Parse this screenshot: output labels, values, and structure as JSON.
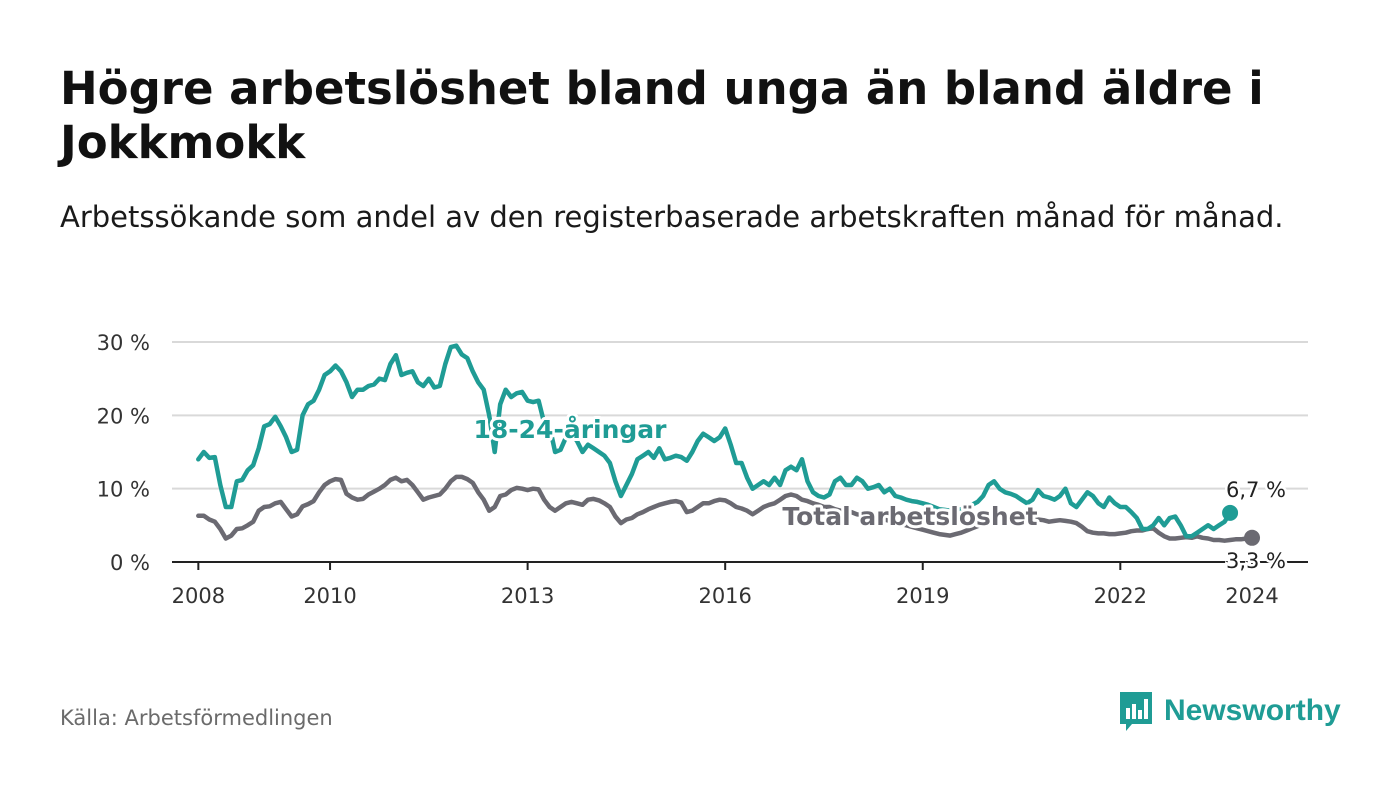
{
  "title": "Högre arbetslöshet bland unga än bland äldre i Jokkmokk",
  "subtitle": "Arbetssökande som andel av den registerbaserade arbetskraften månad för månad.",
  "source": "Källa: Arbetsförmedlingen",
  "brand": {
    "name": "Newsworthy",
    "icon": "newsworthy-logo-icon",
    "color": "#1f9c95"
  },
  "chart_data": {
    "type": "line",
    "title": "Högre arbetslöshet bland unga än bland äldre i Jokkmokk",
    "xlabel": "",
    "ylabel": "",
    "ylim": [
      0,
      30
    ],
    "xlim": [
      2007.6,
      2024.85
    ],
    "yticks": [
      0,
      10,
      20,
      30
    ],
    "ytick_labels": [
      "0 %",
      "10 %",
      "20 %",
      "30 %"
    ],
    "xticks": [
      2008,
      2010,
      2013,
      2016,
      2019,
      2022,
      2024
    ],
    "xtick_labels": [
      "2008",
      "2010",
      "2013",
      "2016",
      "2019",
      "2022",
      "2024"
    ],
    "grid": true,
    "legend": "inline labels",
    "series": [
      {
        "name": "18-24-åringar",
        "color": "#1f9c95",
        "x_start": 2008.0,
        "x_step": 0.0833333,
        "values": [
          14,
          15,
          14.2,
          14.3,
          10.5,
          7.5,
          7.5,
          11,
          11.2,
          12.5,
          13.2,
          15.5,
          18.5,
          18.8,
          19.8,
          18.5,
          17,
          15,
          15.3,
          20,
          21.5,
          22,
          23.5,
          25.5,
          26,
          26.8,
          26,
          24.5,
          22.5,
          23.5,
          23.5,
          24,
          24.2,
          25,
          24.8,
          27,
          28.2,
          25.5,
          25.8,
          26,
          24.5,
          24,
          25,
          23.8,
          24,
          27,
          29.3,
          29.5,
          28.3,
          27.8,
          26,
          24.5,
          23.5,
          20,
          15,
          21.5,
          23.5,
          22.5,
          23,
          23.2,
          22,
          21.8,
          22,
          19,
          18.5,
          15,
          15.3,
          17,
          17.5,
          16.5,
          15,
          16,
          15.5,
          15,
          14.5,
          13.5,
          11,
          9,
          10.5,
          12,
          14,
          14.5,
          15,
          14.2,
          15.5,
          14,
          14.2,
          14.5,
          14.3,
          13.8,
          15,
          16.5,
          17.5,
          17,
          16.5,
          17,
          18.2,
          16,
          13.5,
          13.5,
          11.5,
          10,
          10.5,
          11,
          10.5,
          11.5,
          10.5,
          12.5,
          13,
          12.5,
          14,
          11,
          9.5,
          9,
          8.8,
          9.2,
          11,
          11.5,
          10.5,
          10.5,
          11.5,
          11,
          10,
          10.2,
          10.5,
          9.5,
          10,
          9,
          8.8,
          8.5,
          8.3,
          8.2,
          8,
          7.8,
          7.5,
          7.2,
          7.1,
          7.0,
          7.0,
          7.2,
          7.5,
          7.8,
          8.2,
          9,
          10.5,
          11,
          10,
          9.5,
          9.3,
          9,
          8.5,
          8,
          8.5,
          9.8,
          9,
          8.8,
          8.5,
          9,
          10,
          8,
          7.5,
          8.5,
          9.5,
          9,
          8,
          7.5,
          8.8,
          8,
          7.5,
          7.5,
          6.8,
          6,
          4.5,
          4.5,
          5,
          6,
          5,
          6,
          6.2,
          5,
          3.5,
          3.5,
          4,
          4.5,
          5,
          4.5,
          5,
          5.5,
          6.7
        ]
      },
      {
        "name": "Total arbetslöshet",
        "color": "#6b6a72",
        "x_start": 2008.0,
        "x_step": 0.0833333,
        "values": [
          6.3,
          6.3,
          5.8,
          5.5,
          4.5,
          3.2,
          3.6,
          4.5,
          4.6,
          5.0,
          5.5,
          7.0,
          7.5,
          7.6,
          8.0,
          8.2,
          7.2,
          6.2,
          6.5,
          7.6,
          7.9,
          8.3,
          9.5,
          10.5,
          11.0,
          11.3,
          11.2,
          9.3,
          8.8,
          8.5,
          8.6,
          9.2,
          9.6,
          10.0,
          10.5,
          11.2,
          11.5,
          11.0,
          11.2,
          10.5,
          9.5,
          8.5,
          8.8,
          9.0,
          9.2,
          10.0,
          11.0,
          11.6,
          11.6,
          11.3,
          10.8,
          9.5,
          8.5,
          7.0,
          7.5,
          9.0,
          9.2,
          9.8,
          10.1,
          10.0,
          9.8,
          10.0,
          9.9,
          8.5,
          7.5,
          7.0,
          7.5,
          8.0,
          8.2,
          8.0,
          7.8,
          8.5,
          8.6,
          8.4,
          8.0,
          7.5,
          6.2,
          5.3,
          5.8,
          6.0,
          6.5,
          6.8,
          7.2,
          7.5,
          7.8,
          8.0,
          8.2,
          8.3,
          8.1,
          6.8,
          7.0,
          7.5,
          8.0,
          8.0,
          8.3,
          8.5,
          8.4,
          8.0,
          7.5,
          7.3,
          7.0,
          6.5,
          7.0,
          7.5,
          7.8,
          8.0,
          8.5,
          9.0,
          9.2,
          9.0,
          8.5,
          8.3,
          8.0,
          7.8,
          7.5,
          7.5,
          7.2,
          7.0,
          6.8,
          6.8,
          6.5,
          6.4,
          6.3,
          6.2,
          6.0,
          5.8,
          5.6,
          5.4,
          5.2,
          5.0,
          4.8,
          4.6,
          4.4,
          4.2,
          4.0,
          3.8,
          3.7,
          3.6,
          3.8,
          4.0,
          4.3,
          4.6,
          4.9,
          5.2,
          5.5,
          5.7,
          5.9,
          6.0,
          6.2,
          6.3,
          6.3,
          6.0,
          6.0,
          5.8,
          5.7,
          5.5,
          5.6,
          5.7,
          5.6,
          5.5,
          5.3,
          4.8,
          4.2,
          4.0,
          3.9,
          3.9,
          3.8,
          3.8,
          3.9,
          4.0,
          4.2,
          4.3,
          4.3,
          4.5,
          4.6,
          4.0,
          3.5,
          3.2,
          3.2,
          3.3,
          3.4,
          3.3,
          3.5,
          3.3,
          3.2,
          3.0,
          3.0,
          2.9,
          3.0,
          3.1,
          3.1,
          3.2,
          3.3
        ]
      }
    ],
    "annotations": {
      "youth_label": "18-24-åringar",
      "total_label": "Total arbetslöshet",
      "youth_end": "6,7 %",
      "total_end": "3,3 %"
    }
  }
}
